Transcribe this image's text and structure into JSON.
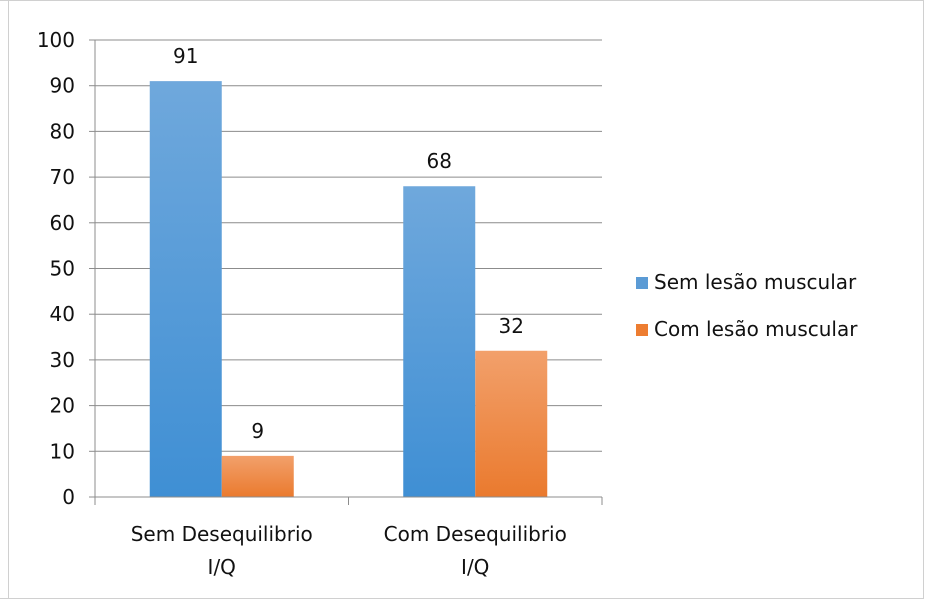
{
  "chart_data": {
    "type": "bar",
    "categories": [
      "Sem Desequilibrio I/Q",
      "Com Desequilibrio I/Q"
    ],
    "category_lines": [
      [
        "Sem Desequilibrio",
        "I/Q"
      ],
      [
        "Com Desequilibrio",
        "I/Q"
      ]
    ],
    "series": [
      {
        "name": "Sem lesão muscular",
        "values": [
          91,
          68
        ],
        "color": "#5b9bd5"
      },
      {
        "name": "Com lesão muscular",
        "values": [
          9,
          32
        ],
        "color": "#ed7d31"
      }
    ],
    "data_labels": [
      [
        "91",
        "68"
      ],
      [
        "9",
        "32"
      ]
    ],
    "ylim": [
      0,
      100
    ],
    "yticks": [
      0,
      10,
      20,
      30,
      40,
      50,
      60,
      70,
      80,
      90,
      100
    ],
    "grid": true,
    "legend_position": "right",
    "title": "",
    "xlabel": "",
    "ylabel": ""
  }
}
